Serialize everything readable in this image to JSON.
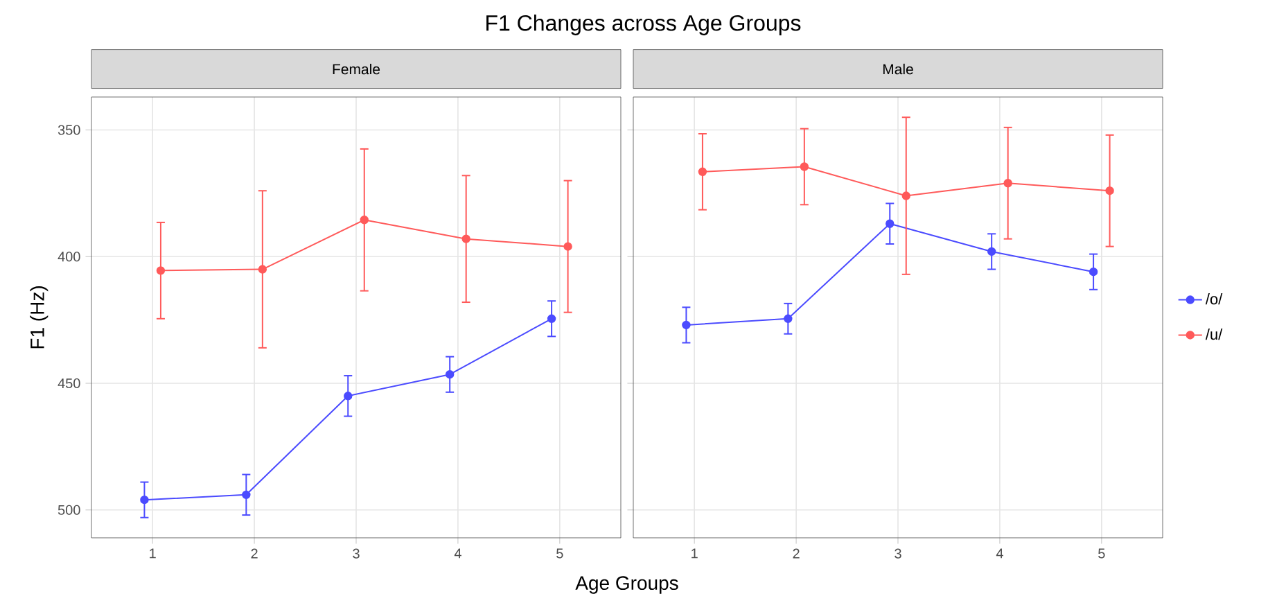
{
  "chart_data": [
    {
      "type": "line",
      "title": "F1 Changes across Age Groups",
      "subtitle": "Female",
      "xlabel": "Age Groups",
      "ylabel": "F1 (Hz)",
      "xlim": [
        0.4,
        5.6
      ],
      "xticks": [
        1,
        2,
        3,
        4,
        5
      ],
      "ylim": [
        511,
        337
      ],
      "yticks": [
        350,
        400,
        450,
        500
      ],
      "grid": true,
      "marker": "circle",
      "line_style": "solid",
      "series": [
        {
          "color": "#4b4bff",
          "x": [
            0.92,
            1.92,
            2.92,
            3.92,
            4.92
          ],
          "values": [
            496,
            494,
            455,
            446.5,
            424.5
          ],
          "errors": [
            7,
            8,
            8,
            7,
            7
          ]
        },
        {
          "color": "#ff5a5a",
          "x": [
            1.08,
            2.08,
            3.08,
            4.08,
            5.08
          ],
          "values": [
            405.5,
            405,
            385.5,
            393,
            396
          ],
          "errors": [
            19,
            31,
            28,
            25,
            26
          ]
        }
      ]
    },
    {
      "type": "line",
      "subtitle": "Male",
      "xlim": [
        0.4,
        5.6
      ],
      "xticks": [
        1,
        2,
        3,
        4,
        5
      ],
      "ylim": [
        511,
        337
      ],
      "yticks": [
        350,
        400,
        450,
        500
      ],
      "tick_labels": "x",
      "grid": true,
      "marker": "circle",
      "line_style": "solid",
      "legend": "right",
      "series": [
        {
          "name": "/o/",
          "color": "#4b4bff",
          "x": [
            0.92,
            1.92,
            2.92,
            3.92,
            4.92
          ],
          "values": [
            427,
            424.5,
            387,
            398,
            406
          ],
          "errors": [
            7,
            6,
            8,
            7,
            7
          ]
        },
        {
          "name": "/u/",
          "color": "#ff5a5a",
          "x": [
            1.08,
            2.08,
            3.08,
            4.08,
            5.08
          ],
          "values": [
            366.5,
            364.5,
            376,
            371,
            374
          ],
          "errors": [
            15,
            15,
            31,
            22,
            22
          ]
        }
      ]
    }
  ]
}
